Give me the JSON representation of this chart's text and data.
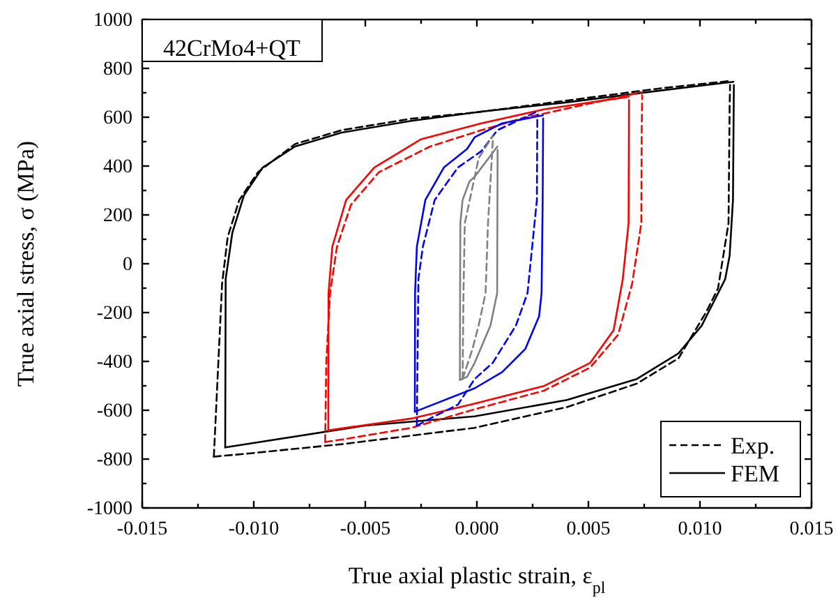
{
  "chart_data": {
    "type": "line",
    "xlabel": "True axial plastic strain, ε$_{pl}$",
    "ylabel": "True axial stress, σ (MPa)",
    "annotations": [
      "42CrMo4+QT"
    ],
    "xlim": [
      -0.015,
      0.015
    ],
    "ylim": [
      -1000,
      1000
    ],
    "xticks": [
      {
        "value": -0.015,
        "label": "-0.015"
      },
      {
        "value": -0.0125,
        "label": null
      },
      {
        "value": -0.01,
        "label": "-0.010"
      },
      {
        "value": -0.0075,
        "label": null
      },
      {
        "value": -0.005,
        "label": "-0.005"
      },
      {
        "value": -0.0025,
        "label": null
      },
      {
        "value": 0,
        "label": "0.000"
      },
      {
        "value": 0.0025,
        "label": null
      },
      {
        "value": 0.005,
        "label": "0.005"
      },
      {
        "value": 0.0075,
        "label": null
      },
      {
        "value": 0.01,
        "label": "0.010"
      },
      {
        "value": 0.0125,
        "label": null
      },
      {
        "value": 0.015,
        "label": "0.015"
      }
    ],
    "yticks": [
      -1000,
      {
        "value": -900,
        "label": null
      },
      -800,
      {
        "value": -700,
        "label": null
      },
      -600,
      {
        "value": -500,
        "label": null
      },
      -400,
      {
        "value": -300,
        "label": null
      },
      -200,
      {
        "value": -100,
        "label": null
      },
      0,
      {
        "value": 100,
        "label": null
      },
      200,
      {
        "value": 300,
        "label": null
      },
      400,
      {
        "value": 500,
        "label": null
      },
      600,
      {
        "value": 700,
        "label": null
      },
      800,
      {
        "value": 900,
        "label": null
      },
      1000
    ],
    "legend": "bottom right",
    "marker": "none",
    "series": [
      {
        "name": "Exp.",
        "color": "#000000",
        "line_style": "dashed",
        "x": [
          -0.01179,
          -0.01169,
          -0.01142,
          -0.01117,
          -0.01065,
          -0.00981,
          -0.00815,
          -0.00606,
          -0.00294,
          -0.0001,
          0.0082,
          0.0113
        ],
        "values": [
          -790,
          -600,
          -82,
          109,
          261,
          375,
          490,
          547,
          594,
          619,
          718,
          748
        ]
      },
      {
        "color": "#000000",
        "line_style": "dashed",
        "x": [
          -0.01179,
          -0.01023,
          -0.00606,
          -0.0001,
          0.00404,
          0.00717,
          0.00904,
          0.01029,
          0.01081,
          0.01128,
          0.01133,
          0.01135
        ],
        "values": [
          -790,
          -777,
          -739,
          -672,
          -587,
          -491,
          -387,
          -196,
          -101,
          166,
          642,
          732
        ]
      },
      {
        "name": "FEM",
        "color": "#000000",
        "line_style": "solid",
        "x": [
          -0.01128,
          -0.01126,
          -0.01096,
          -0.01044,
          -0.0096,
          -0.00815,
          -0.00606,
          -0.00294,
          0.0002,
          0.00404,
          0.0082,
          0.0115
        ],
        "values": [
          -752,
          -63,
          127,
          280,
          394,
          480,
          537,
          585,
          623,
          661,
          709,
          745
        ]
      },
      {
        "color": "#000000",
        "line_style": "solid",
        "x": [
          -0.01128,
          -0.00502,
          -0.0001,
          0.00404,
          0.00717,
          0.00904,
          0.01008,
          0.01113,
          0.01133,
          0.01148,
          0.01152
        ],
        "values": [
          -752,
          -663,
          -625,
          -558,
          -472,
          -367,
          -253,
          -63,
          33,
          261,
          732
        ]
      },
      {
        "color": "#ff0000",
        "line_style": "dashed",
        "x": [
          -0.0068,
          -0.00675,
          -0.00658,
          -0.00627,
          -0.00564,
          -0.00439,
          -0.0021,
          0.0002,
          0.00196,
          0.0074
        ],
        "values": [
          -730,
          -400,
          -120,
          70,
          242,
          375,
          480,
          547,
          594,
          703
        ]
      },
      {
        "color": "#ff0000",
        "line_style": "dashed",
        "x": [
          -0.0068,
          -0.00606,
          -0.00294,
          -0.0001,
          0.003,
          0.00508,
          0.00633,
          0.00696,
          0.00737,
          0.00739,
          0.00741
        ],
        "values": [
          -730,
          -720,
          -672,
          -596,
          -520,
          -425,
          -291,
          -82,
          166,
          547,
          690
        ]
      },
      {
        "color": "#ff0000",
        "line_style": "solid",
        "x": [
          -0.00666,
          -0.00665,
          -0.00648,
          -0.00586,
          -0.0046,
          -0.00252,
          0.0002,
          0.003,
          0.00681
        ],
        "values": [
          -682,
          -120,
          70,
          261,
          394,
          509,
          575,
          632,
          684
        ]
      },
      {
        "color": "#ff0000",
        "line_style": "solid",
        "x": [
          -0.00666,
          -0.00294,
          -0.0001,
          0.003,
          0.00508,
          0.00613,
          0.00654,
          0.0068,
          0.00682
        ],
        "values": [
          -682,
          -634,
          -573,
          -501,
          -406,
          -272,
          -63,
          166,
          670
        ]
      },
      {
        "color": "#0000ff",
        "line_style": "dashed",
        "x": [
          -0.00269,
          -0.00262,
          -0.00242,
          -0.00189,
          -0.00085,
          0.0002,
          0.00092,
          0.0027
        ],
        "values": [
          -663,
          -63,
          70,
          261,
          394,
          461,
          547,
          623
        ]
      },
      {
        "color": "#0000ff",
        "line_style": "dashed",
        "x": [
          -0.00269,
          -0.0021,
          -0.00085,
          -0.0001,
          0.00071,
          0.00175,
          0.00227,
          0.00269,
          0.00271
        ],
        "values": [
          -663,
          -634,
          -577,
          -472,
          -406,
          -253,
          -120,
          261,
          610
        ]
      },
      {
        "color": "#0000ff",
        "line_style": "solid",
        "x": [
          -0.00278,
          -0.00277,
          -0.00269,
          -0.00231,
          -0.00148,
          -0.00044,
          -0.0001,
          0.00113,
          0.00296
        ],
        "values": [
          -606,
          -120,
          70,
          261,
          394,
          470,
          518,
          575,
          608
        ]
      },
      {
        "color": "#0000ff",
        "line_style": "solid",
        "x": [
          -0.00278,
          -0.0001,
          0.00113,
          0.00217,
          0.00279,
          0.0029,
          0.00295,
          0.00297
        ],
        "values": [
          -606,
          -510,
          -444,
          -349,
          -215,
          -120,
          261,
          595
        ]
      },
      {
        "color": "#808080",
        "line_style": "dashed",
        "x": [
          -0.00064,
          -0.0006,
          -0.00054,
          -0.00023,
          8e-05,
          0.00071
        ],
        "values": [
          -472,
          -120,
          166,
          299,
          432,
          524
        ]
      },
      {
        "color": "#808080",
        "line_style": "dashed",
        "x": [
          -0.00064,
          -0.0002,
          8e-05,
          0.00039,
          0.0005,
          0.00072
        ],
        "values": [
          -472,
          -350,
          -253,
          -120,
          166,
          510
        ]
      },
      {
        "color": "#808080",
        "line_style": "solid",
        "x": [
          -0.00076,
          -0.00075,
          -0.00074,
          -0.00064,
          -0.00033,
          -0.0001,
          0.00092
        ],
        "values": [
          -476,
          -63,
          166,
          261,
          337,
          356,
          480
        ]
      },
      {
        "color": "#808080",
        "line_style": "solid",
        "x": [
          -0.00076,
          -0.00044,
          -0.0001,
          0.00061,
          0.00091,
          0.00093
        ],
        "values": [
          -476,
          -463,
          -406,
          -253,
          -120,
          466
        ]
      }
    ]
  }
}
